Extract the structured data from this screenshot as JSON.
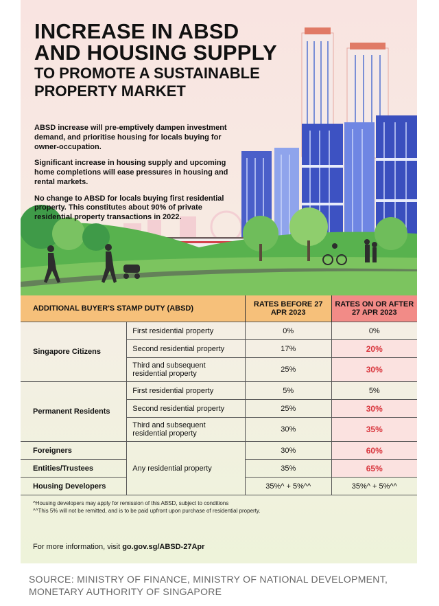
{
  "title": {
    "line1": "INCREASE IN ABSD",
    "line2": "AND HOUSING SUPPLY",
    "line3": "TO PROMOTE A SUSTAINABLE",
    "line4": "PROPERTY MARKET"
  },
  "intro": [
    "ABSD increase will pre-emptively dampen investment demand, and prioritise housing for locals buying for owner-occupation.",
    "Significant increase in housing supply and upcoming home completions will ease pressures in housing and rental markets.",
    "No change to ABSD for locals buying first residential property. This constitutes about 90% of private residential property transactions in 2022."
  ],
  "table": {
    "header": {
      "col1": "ADDITIONAL BUYER'S STAMP DUTY (ABSD)",
      "col2": "RATES BEFORE 27 APR 2023",
      "col3": "RATES ON OR AFTER 27 APR 2023"
    },
    "citizens": {
      "label": "Singapore Citizens",
      "rows": [
        {
          "type": "First residential property",
          "before": "0%",
          "after": "0%"
        },
        {
          "type": "Second residential property",
          "before": "17%",
          "after": "20%"
        },
        {
          "type": "Third and subsequent residential property",
          "before": "25%",
          "after": "30%"
        }
      ]
    },
    "pr": {
      "label": "Permanent Residents",
      "rows": [
        {
          "type": "First residential property",
          "before": "5%",
          "after": "5%"
        },
        {
          "type": "Second residential property",
          "before": "25%",
          "after": "30%"
        },
        {
          "type": "Third and subsequent residential property",
          "before": "30%",
          "after": "35%"
        }
      ]
    },
    "others": {
      "property_type": "Any residential property",
      "rows": [
        {
          "label": "Foreigners",
          "before": "30%",
          "after": "60%"
        },
        {
          "label": "Entities/Trustees",
          "before": "35%",
          "after": "65%"
        },
        {
          "label": "Housing Developers",
          "before": "35%^ + 5%^^",
          "after": "35%^ + 5%^^"
        }
      ]
    },
    "notes": [
      "^Housing developers may apply for remission of this ABSD, subject to conditions",
      "^^This 5% will not be remitted, and is to be paid upfront upon purchase of residential property."
    ]
  },
  "more_info": {
    "prefix": "For more information, visit ",
    "link": "go.gov.sg/ABSD-27Apr"
  },
  "source": {
    "line1": "SOURCE: MINISTRY OF FINANCE, MINISTRY OF NATIONAL DEVELOPMENT,",
    "line2": "MONETARY AUTHORITY OF SINGAPORE"
  },
  "colors": {
    "header_orange": "#f6c07a",
    "header_red": "#f28b87",
    "highlight_red": "#d8343c",
    "highlight_bg": "#fbe2e0"
  }
}
